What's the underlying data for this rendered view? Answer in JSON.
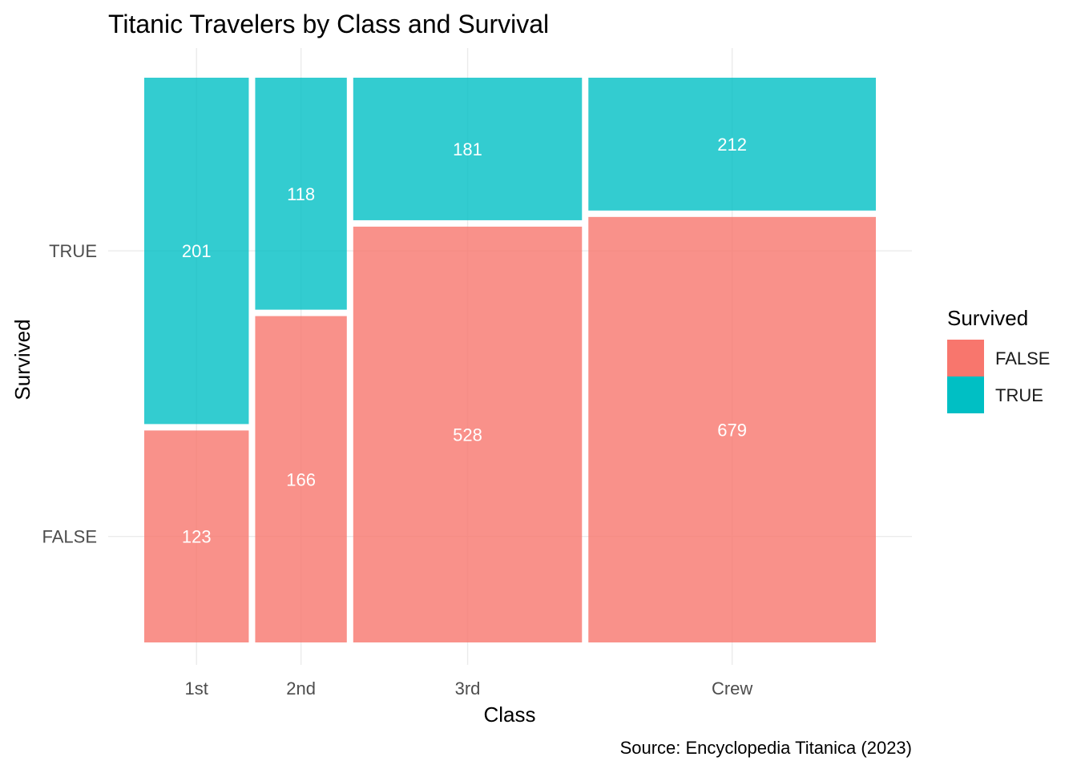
{
  "chart_data": {
    "type": "mosaic",
    "title": "Titanic Travelers by Class and Survival",
    "xlabel": "Class",
    "ylabel": "Survived",
    "caption": "Source: Encyclopedia Titanica (2023)",
    "categories": [
      "1st",
      "2nd",
      "3rd",
      "Crew"
    ],
    "y_ticks": [
      "FALSE",
      "TRUE"
    ],
    "grid": true,
    "legend": {
      "title": "Survived",
      "position": "right",
      "entries": [
        {
          "label": "FALSE",
          "color": "#F8766D"
        },
        {
          "label": "TRUE",
          "color": "#00BFC4"
        }
      ]
    },
    "series": [
      {
        "name": "FALSE",
        "values": [
          123,
          166,
          528,
          679
        ]
      },
      {
        "name": "TRUE",
        "values": [
          201,
          118,
          181,
          212
        ]
      }
    ],
    "fill_opacity": 0.8
  }
}
